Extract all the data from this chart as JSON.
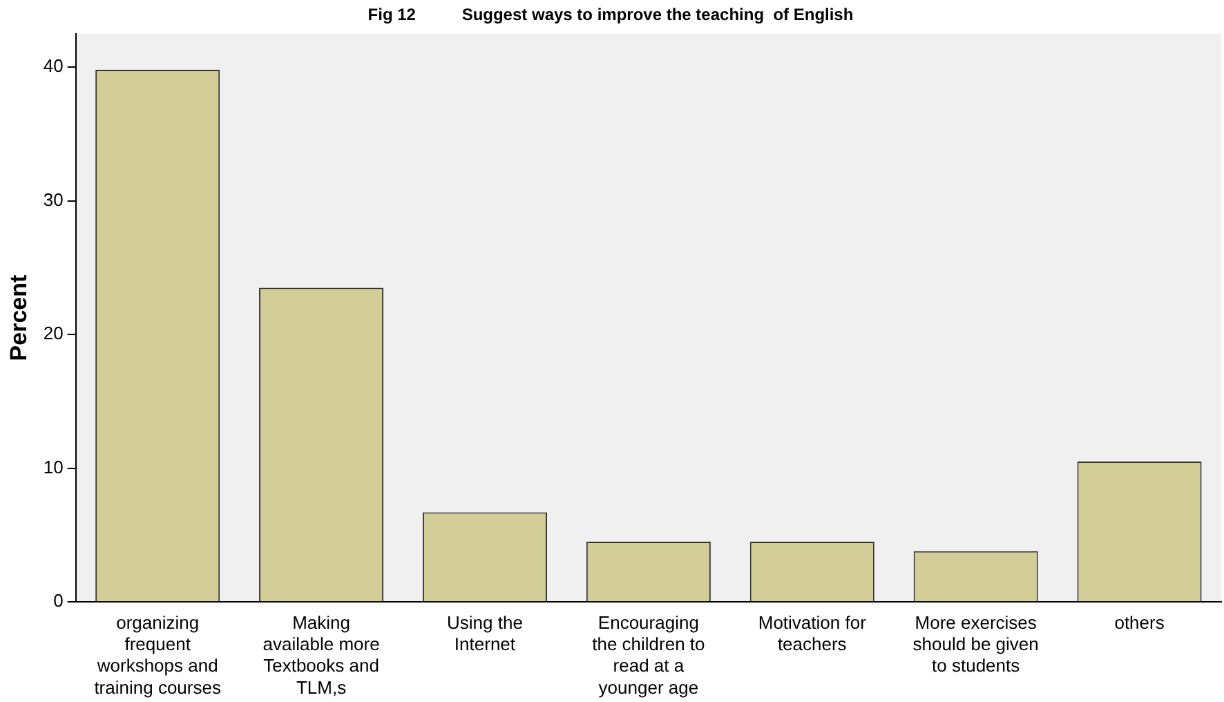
{
  "chart_data": {
    "type": "bar",
    "title": "Fig 12          Suggest ways to improve the teaching  of English",
    "ylabel": "Percent",
    "categories": [
      "organizing frequent workshops and training courses",
      "Making available more Textbooks and TLM,s",
      "Using the Internet",
      "Encouraging the children to read at a younger age",
      "Motivation for teachers",
      "More exercises should be given to students",
      "others"
    ],
    "values": [
      39.8,
      23.5,
      6.7,
      4.5,
      4.5,
      3.8,
      10.5
    ],
    "color": "#d3ce97",
    "ylim": [
      0,
      42.5
    ],
    "yticks": [
      0,
      10,
      20,
      30,
      40
    ],
    "grid": false,
    "legend": false
  }
}
